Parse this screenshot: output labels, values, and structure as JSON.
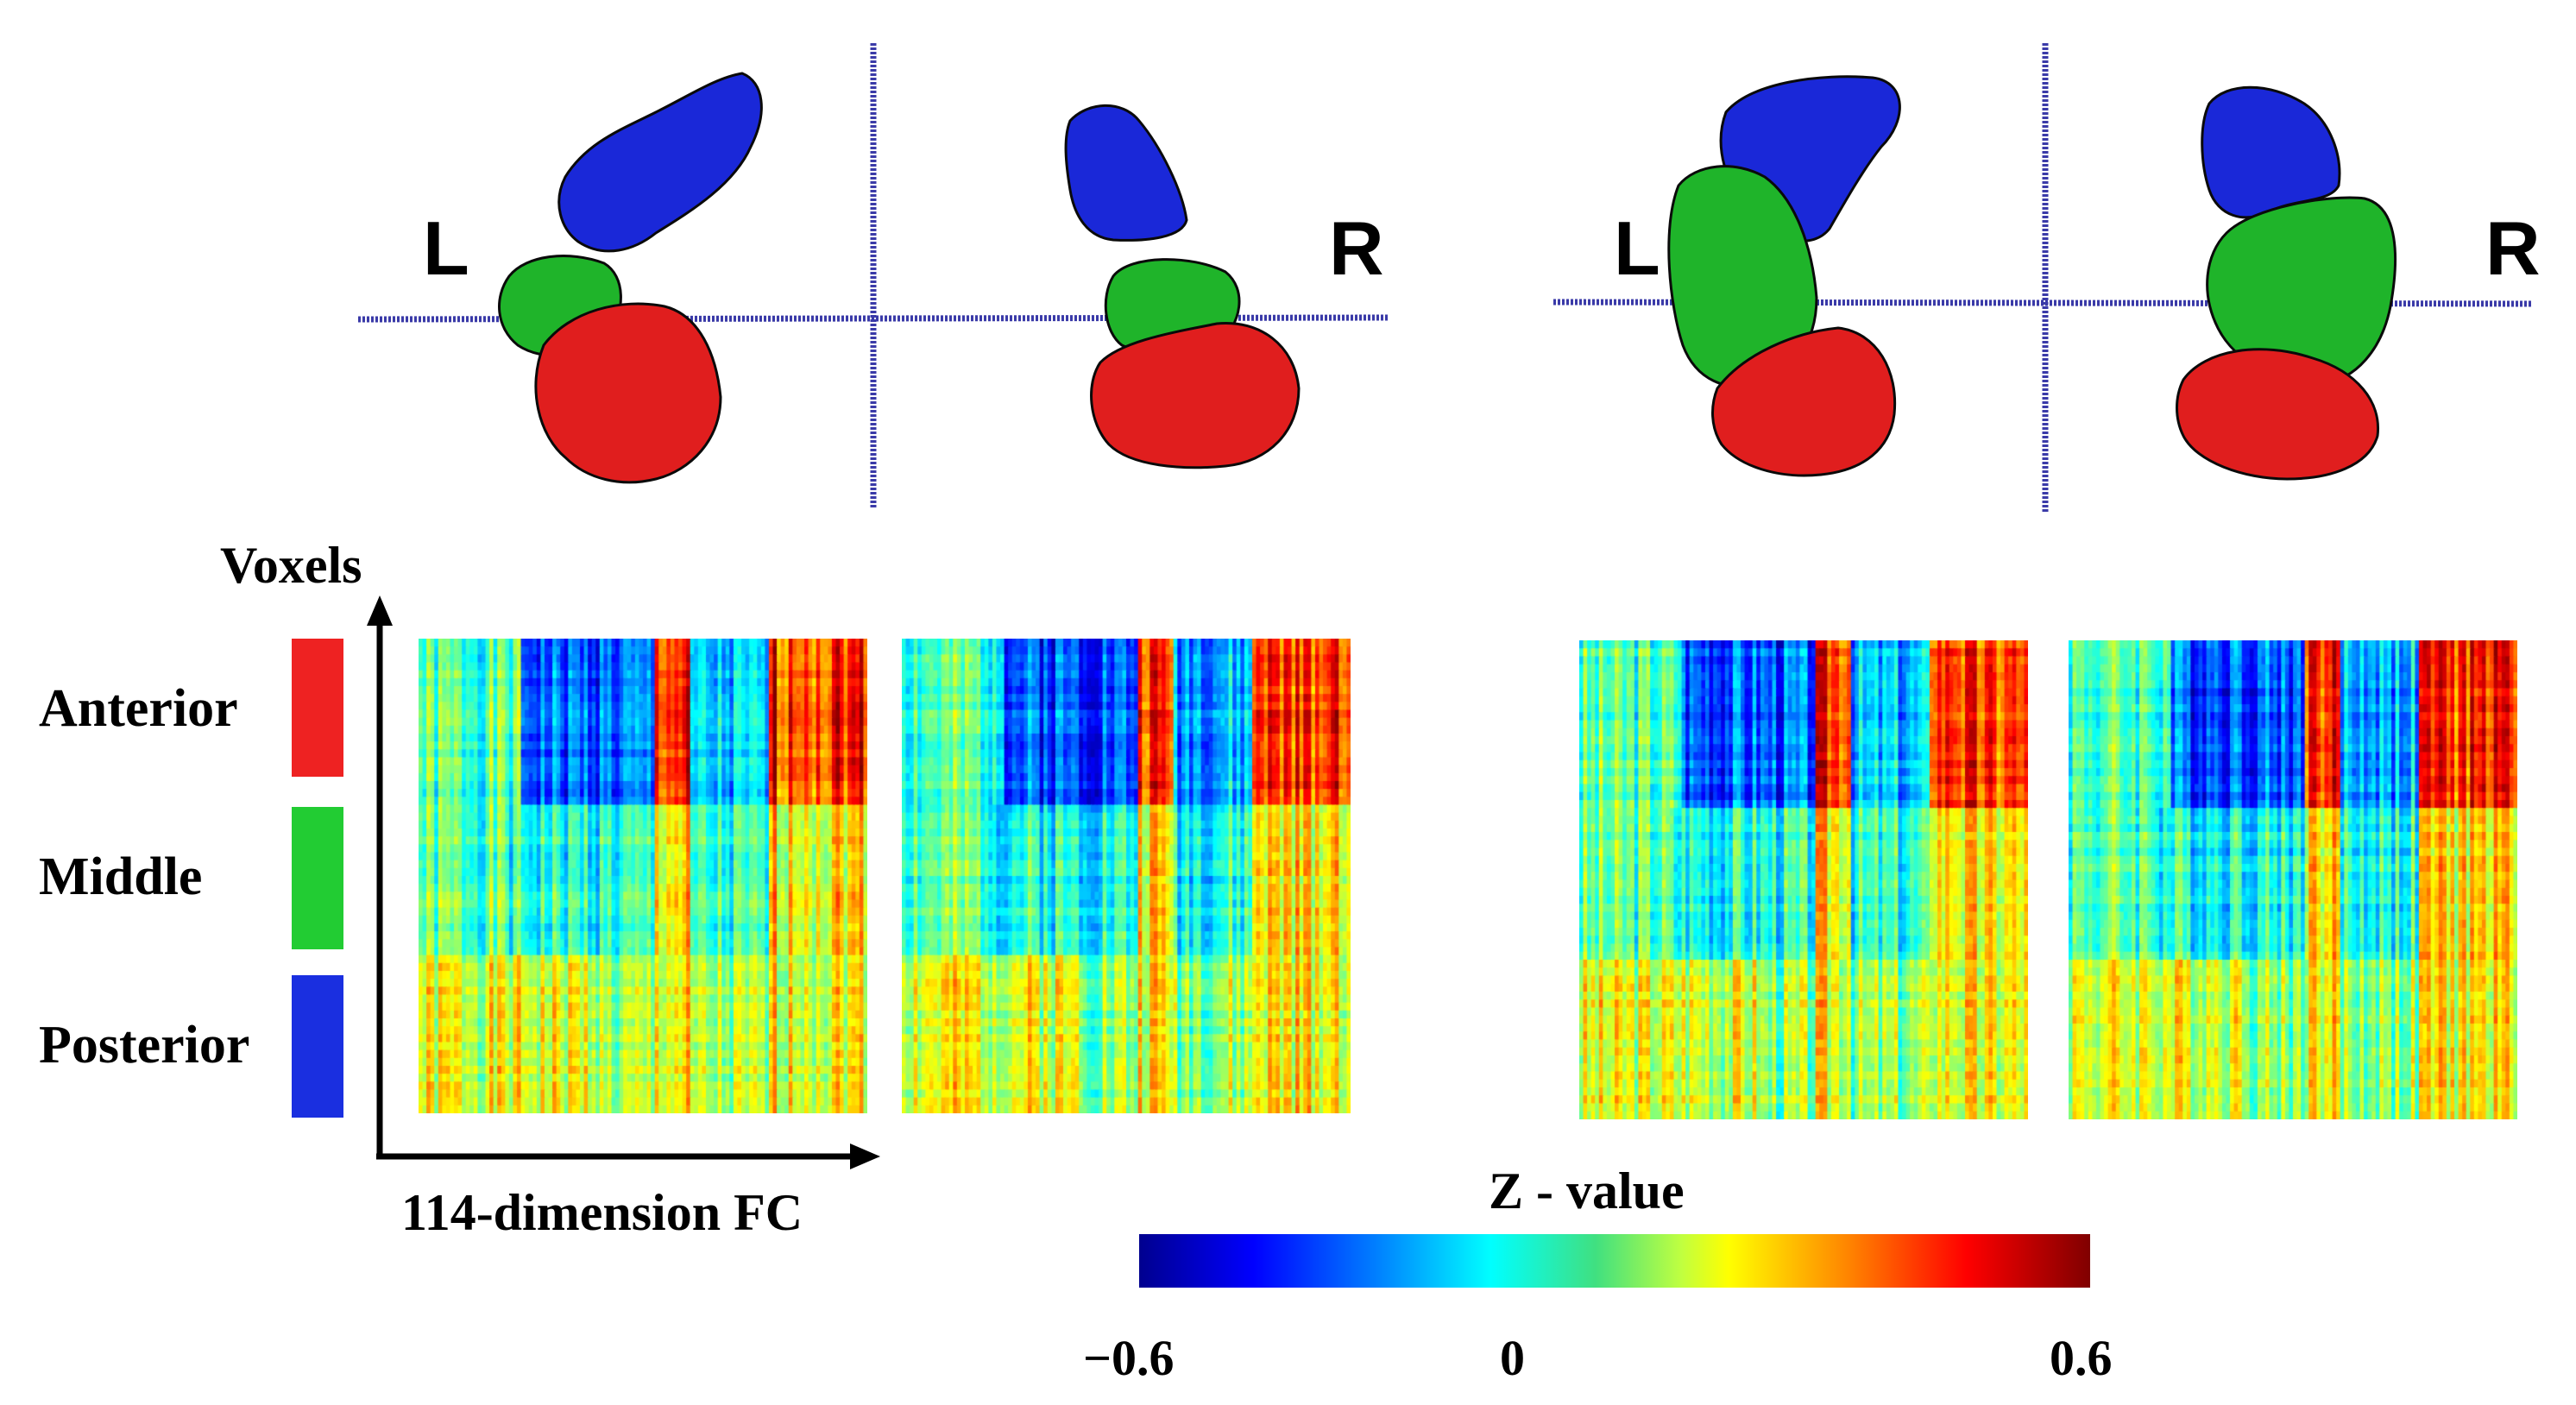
{
  "figure": {
    "brain_views": [
      {
        "left_label": "L",
        "right_label": "R"
      },
      {
        "left_label": "L",
        "right_label": "R"
      }
    ],
    "axes": {
      "y_label": "Voxels",
      "x_label": "114-dimension FC"
    },
    "regions": [
      {
        "label": "Anterior",
        "color": "#ee2222"
      },
      {
        "label": "Middle",
        "color": "#22cc33"
      },
      {
        "label": "Posterior",
        "color": "#1a2fe0"
      }
    ],
    "colorbar": {
      "title": "Z - value",
      "min_label": "−0.6",
      "mid_label": "0",
      "max_label": "0.6",
      "min": -0.6,
      "max": 0.6
    },
    "colors": {
      "blue_region": "#1a28d8",
      "green_region": "#1fb42a",
      "red_region": "#e01e1e",
      "crosshair": "#3a3aa8"
    }
  }
}
